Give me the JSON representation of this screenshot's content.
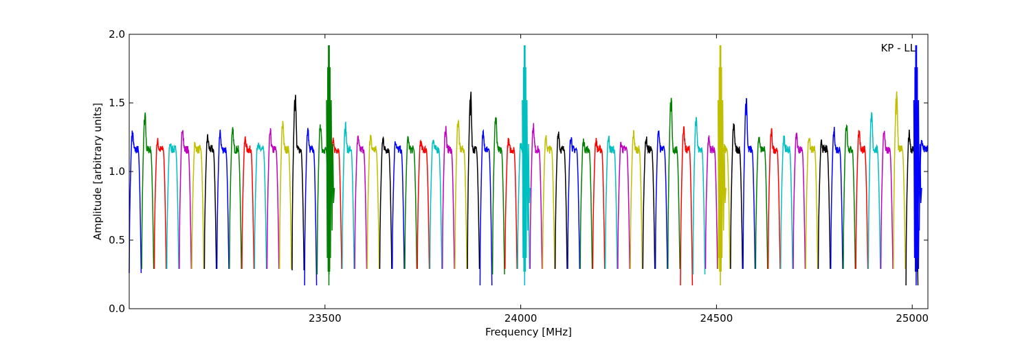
{
  "chart_data": {
    "type": "line",
    "title": "",
    "annotation": "KP - LL",
    "xlabel": "Frequency [MHz]",
    "ylabel": "Amplitude [arbitrary units]",
    "xlim": [
      23000,
      25040
    ],
    "ylim": [
      0.0,
      2.0
    ],
    "x_ticks": [
      23500,
      24000,
      24500,
      25000
    ],
    "x_tick_labels": [
      "23500",
      "24000",
      "24500",
      "25000"
    ],
    "y_ticks": [
      0.0,
      0.5,
      1.0,
      1.5,
      2.0
    ],
    "y_tick_labels": [
      "0.0",
      "0.5",
      "1.0",
      "1.5",
      "2.0"
    ],
    "grid": false,
    "legend": "none",
    "channel_width_mhz": 32,
    "channel_start_mhz": 23000,
    "color_cycle": [
      "#0000ff",
      "#008000",
      "#ff0000",
      "#00bfbf",
      "#bf00bf",
      "#bfbf00",
      "#000000"
    ],
    "channel_peaks": [
      1.29,
      1.41,
      1.22,
      1.2,
      1.32,
      1.2,
      1.25,
      1.28,
      1.3,
      1.24,
      1.2,
      1.29,
      1.36,
      1.56,
      1.3,
      1.34,
      1.22,
      1.34,
      1.24,
      1.25,
      1.24,
      1.22,
      1.24,
      1.22,
      1.24,
      1.32,
      1.38,
      1.56,
      1.3,
      1.4,
      1.22,
      1.2,
      1.33,
      1.24,
      1.29,
      1.26,
      1.22,
      1.22,
      1.25,
      1.2,
      1.28,
      1.24,
      1.3,
      1.54,
      1.3,
      1.4,
      1.24,
      1.22,
      1.34,
      1.53,
      1.24,
      1.29,
      1.24,
      1.27,
      1.25,
      1.21,
      1.3,
      1.35,
      1.3,
      1.42,
      1.3,
      1.57,
      1.28,
      1.22
    ],
    "channel_dips": [
      0.26,
      0.29,
      0.29,
      0.29,
      0.29,
      0.29,
      0.29,
      0.29,
      0.29,
      0.29,
      0.29,
      0.29,
      0.29,
      0.28,
      0.17,
      0.25,
      0.29,
      0.29,
      0.29,
      0.29,
      0.29,
      0.29,
      0.29,
      0.29,
      0.29,
      0.29,
      0.29,
      0.29,
      0.17,
      0.25,
      0.29,
      0.29,
      0.29,
      0.29,
      0.29,
      0.29,
      0.29,
      0.29,
      0.29,
      0.29,
      0.29,
      0.29,
      0.29,
      0.29,
      0.17,
      0.25,
      0.29,
      0.29,
      0.29,
      0.29,
      0.29,
      0.29,
      0.29,
      0.29,
      0.29,
      0.29,
      0.29,
      0.29,
      0.29,
      0.29,
      0.29,
      0.29,
      0.17,
      0.29
    ],
    "spikes": [
      {
        "x": 23510,
        "y_max": 2.0,
        "y_min": 0.17
      },
      {
        "x": 24010,
        "y_max": 2.0,
        "y_min": 0.17
      },
      {
        "x": 24510,
        "y_max": 2.0,
        "y_min": 0.17
      },
      {
        "x": 25010,
        "y_max": 2.0,
        "y_min": 0.17
      }
    ]
  }
}
